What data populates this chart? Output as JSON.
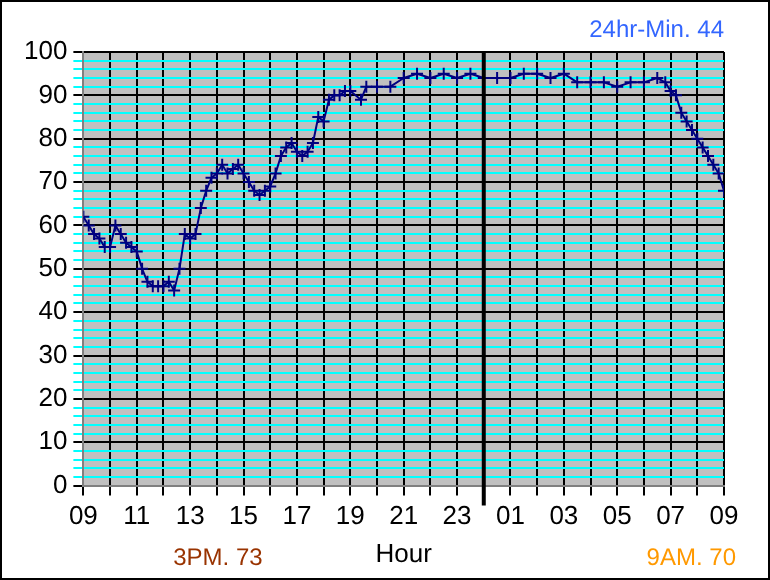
{
  "chart_data": {
    "type": "line",
    "xlabel": "Hour",
    "annotations": [
      "24hr-Min. 44",
      "3PM. 73",
      "9AM. 70"
    ],
    "x": [
      "--01-01T09:00",
      "--01-01T09:12",
      "--01-01T09:24",
      "--01-01T09:36",
      "--01-01T09:48",
      "--01-01T10:00",
      "--01-01T10:12",
      "--01-01T10:24",
      "--01-01T10:36",
      "--01-01T10:48",
      "--01-01T11:00",
      "--01-01T11:12",
      "--01-01T11:24",
      "--01-01T11:36",
      "--01-01T11:48",
      "--01-01T12:00",
      "--01-01T12:12",
      "--01-01T12:24",
      "--01-01T12:36",
      "--01-01T12:48",
      "--01-01T13:00",
      "--01-01T13:12",
      "--01-01T13:24",
      "--01-01T13:36",
      "--01-01T13:48",
      "--01-01T14:00",
      "--01-01T14:12",
      "--01-01T14:24",
      "--01-01T14:36",
      "--01-01T14:48",
      "--01-01T15:00",
      "--01-01T15:12",
      "--01-01T15:24",
      "--01-01T15:36",
      "--01-01T15:48",
      "--01-01T16:00",
      "--01-01T16:12",
      "--01-01T16:24",
      "--01-01T16:36",
      "--01-01T16:48",
      "--01-01T17:00",
      "--01-01T17:12",
      "--01-01T17:24",
      "--01-01T17:36",
      "--01-01T17:48",
      "--01-01T18:00",
      "--01-01T18:12",
      "--01-01T18:24",
      "--01-01T18:36",
      "--01-01T18:48",
      "--01-01T19:00",
      "--01-01T19:24",
      "--01-01T19:36",
      "--01-01T20:00",
      "--01-01T20:30",
      "--01-01T21:00",
      "--01-01T21:30",
      "--01-01T22:00",
      "--01-01T22:30",
      "--01-01T23:00",
      "--01-01T23:30",
      "--01-02T00:00",
      "--01-02T00:30",
      "--01-02T01:00",
      "--01-02T01:30",
      "--01-02T02:00",
      "--01-02T02:30",
      "--01-02T03:00",
      "--01-02T03:30",
      "--01-02T04:00",
      "--01-02T04:30",
      "--01-02T05:00",
      "--01-02T05:30",
      "--01-02T06:00",
      "--01-02T06:30",
      "--01-02T06:48",
      "--01-02T07:00",
      "--01-02T07:12",
      "--01-02T07:24",
      "--01-02T07:36",
      "--01-02T07:48",
      "--01-02T08:00",
      "--01-02T08:12",
      "--01-02T08:24",
      "--01-02T08:36",
      "--01-02T08:48",
      "--01-02T09:00"
    ],
    "series": [
      {
        "color": "#000080",
        "values": [
          62,
          60,
          58,
          57,
          55,
          55,
          60,
          58,
          56,
          55,
          54,
          50,
          47,
          46,
          46,
          46,
          47,
          45,
          50,
          58,
          57,
          58,
          64,
          68,
          71,
          72,
          74,
          72,
          73,
          74,
          72,
          70,
          68,
          67,
          68,
          69,
          72,
          76,
          78,
          79,
          77,
          76,
          77,
          79,
          85,
          84,
          89,
          90,
          90,
          91,
          91,
          89,
          92,
          92,
          92,
          94,
          95,
          94,
          95,
          94,
          95,
          94,
          94,
          94,
          95,
          95,
          94,
          95,
          93,
          93,
          93,
          92,
          93,
          93,
          94,
          93,
          91,
          90,
          86,
          84,
          82,
          80,
          78,
          76,
          74,
          72,
          68
        ]
      }
    ],
    "xlim": [
      "--01-01T09:00",
      "--01-02T09:00"
    ],
    "xticks": [
      {
        "value": "--01-01T09:00",
        "label": "09"
      },
      {
        "value": "--01-01T10:00",
        "label": null
      },
      {
        "value": "--01-01T11:00",
        "label": "11"
      },
      {
        "value": "--01-01T12:00",
        "label": null
      },
      {
        "value": "--01-01T13:00",
        "label": "13"
      },
      {
        "value": "--01-01T14:00",
        "label": null
      },
      {
        "value": "--01-01T15:00",
        "label": "15"
      },
      {
        "value": "--01-01T16:00",
        "label": null
      },
      {
        "value": "--01-01T17:00",
        "label": "17"
      },
      {
        "value": "--01-01T18:00",
        "label": null
      },
      {
        "value": "--01-01T19:00",
        "label": "19"
      },
      {
        "value": "--01-01T20:00",
        "label": null
      },
      {
        "value": "--01-01T21:00",
        "label": "21"
      },
      {
        "value": "--01-01T22:00",
        "label": null
      },
      {
        "value": "--01-01T23:00",
        "label": "23"
      },
      {
        "value": "--01-02T00:00",
        "label": null
      },
      {
        "value": "--01-02T01:00",
        "label": "01"
      },
      {
        "value": "--01-02T02:00",
        "label": null
      },
      {
        "value": "--01-02T03:00",
        "label": "03"
      },
      {
        "value": "--01-02T04:00",
        "label": null
      },
      {
        "value": "--01-02T05:00",
        "label": "05"
      },
      {
        "value": "--01-02T06:00",
        "label": null
      },
      {
        "value": "--01-02T07:00",
        "label": "07"
      },
      {
        "value": "--01-02T08:00",
        "label": null
      },
      {
        "value": "--01-02T09:00",
        "label": "09"
      }
    ],
    "ylim": [
      0,
      100
    ],
    "yticks": [
      0,
      {
        "value": 2,
        "label": null
      },
      {
        "value": 4,
        "label": null
      },
      {
        "value": 6,
        "label": null
      },
      {
        "value": 8,
        "label": null
      },
      10,
      {
        "value": 12,
        "label": null
      },
      {
        "value": 14,
        "label": null
      },
      {
        "value": 16,
        "label": null
      },
      {
        "value": 18,
        "label": null
      },
      20,
      {
        "value": 22,
        "label": null
      },
      {
        "value": 24,
        "label": null
      },
      {
        "value": 26,
        "label": null
      },
      {
        "value": 28,
        "label": null
      },
      30,
      {
        "value": 32,
        "label": null
      },
      {
        "value": 34,
        "label": null
      },
      {
        "value": 36,
        "label": null
      },
      {
        "value": 38,
        "label": null
      },
      40,
      {
        "value": 42,
        "label": null
      },
      {
        "value": 44,
        "label": null
      },
      {
        "value": 46,
        "label": null
      },
      {
        "value": 48,
        "label": null
      },
      50,
      {
        "value": 52,
        "label": null
      },
      {
        "value": 54,
        "label": null
      },
      {
        "value": 56,
        "label": null
      },
      {
        "value": 58,
        "label": null
      },
      60,
      {
        "value": 62,
        "label": null
      },
      {
        "value": 64,
        "label": null
      },
      {
        "value": 66,
        "label": null
      },
      {
        "value": 68,
        "label": null
      },
      70,
      {
        "value": 72,
        "label": null
      },
      {
        "value": 74,
        "label": null
      },
      {
        "value": 76,
        "label": null
      },
      {
        "value": 78,
        "label": null
      },
      80,
      {
        "value": 82,
        "label": null
      },
      {
        "value": 84,
        "label": null
      },
      {
        "value": 86,
        "label": null
      },
      {
        "value": 88,
        "label": null
      },
      90,
      {
        "value": 92,
        "label": null
      },
      {
        "value": 94,
        "label": null
      },
      {
        "value": 96,
        "label": null
      },
      {
        "value": 98,
        "label": null
      },
      100
    ],
    "ref_lines": [
      {
        "axis": "x",
        "value": "--01-02T00:00",
        "color": "#000000"
      }
    ],
    "grid": true,
    "legend": false,
    "marker": "cross",
    "line_style": "solid"
  }
}
